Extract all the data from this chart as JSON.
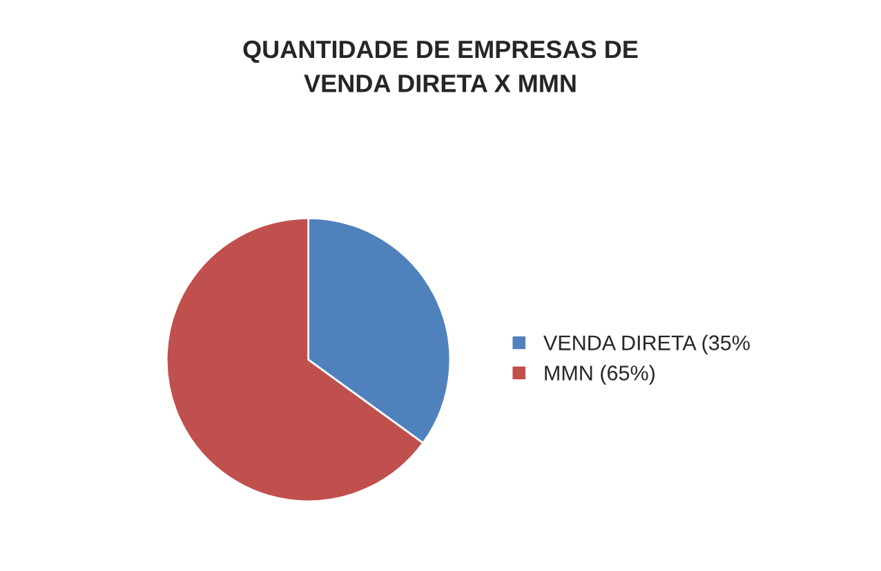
{
  "chart_data": {
    "type": "pie",
    "title": "QUANTIDADE DE EMPRESAS DE\nVENDA DIRETA X MMN",
    "categories": [
      "VENDA DIRETA (35%",
      "MMN (65%)"
    ],
    "values": [
      35,
      65
    ],
    "colors": [
      "#4f81bd",
      "#c0504d"
    ],
    "legend": "right"
  }
}
